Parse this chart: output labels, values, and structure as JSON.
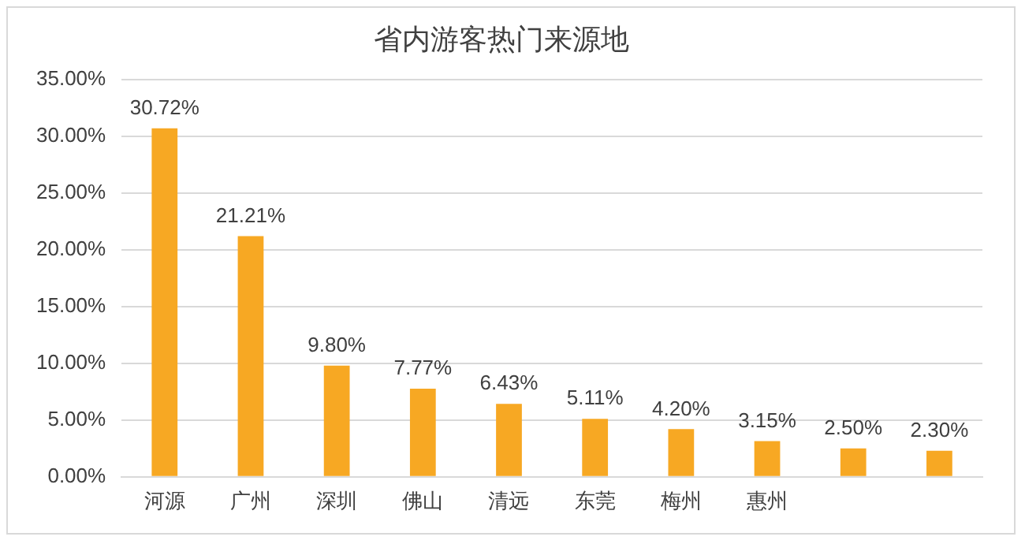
{
  "chart_data": {
    "type": "bar",
    "title": "省内游客热门来源地",
    "categories": [
      "河源",
      "广州",
      "深圳",
      "佛山",
      "清远",
      "东莞",
      "梅州",
      "惠州",
      null,
      null
    ],
    "values": [
      30.72,
      21.21,
      9.8,
      7.77,
      6.43,
      5.11,
      4.2,
      3.15,
      2.5,
      2.3
    ],
    "value_labels": [
      "30.72%",
      "21.21%",
      "9.80%",
      "7.77%",
      "6.43%",
      "5.11%",
      "4.20%",
      "3.15%",
      "2.50%",
      "2.30%"
    ],
    "color": "#f7a823",
    "ylim": [
      0,
      35
    ],
    "yticks": [
      {
        "value": 0,
        "label": "0.00%"
      },
      {
        "value": 5,
        "label": "5.00%"
      },
      {
        "value": 10,
        "label": "10.00%"
      },
      {
        "value": 15,
        "label": "15.00%"
      },
      {
        "value": 20,
        "label": "20.00%"
      },
      {
        "value": 25,
        "label": "25.00%"
      },
      {
        "value": 30,
        "label": "30.00%"
      },
      {
        "value": 35,
        "label": "35.00%"
      }
    ],
    "grid": "y",
    "legend": false
  }
}
